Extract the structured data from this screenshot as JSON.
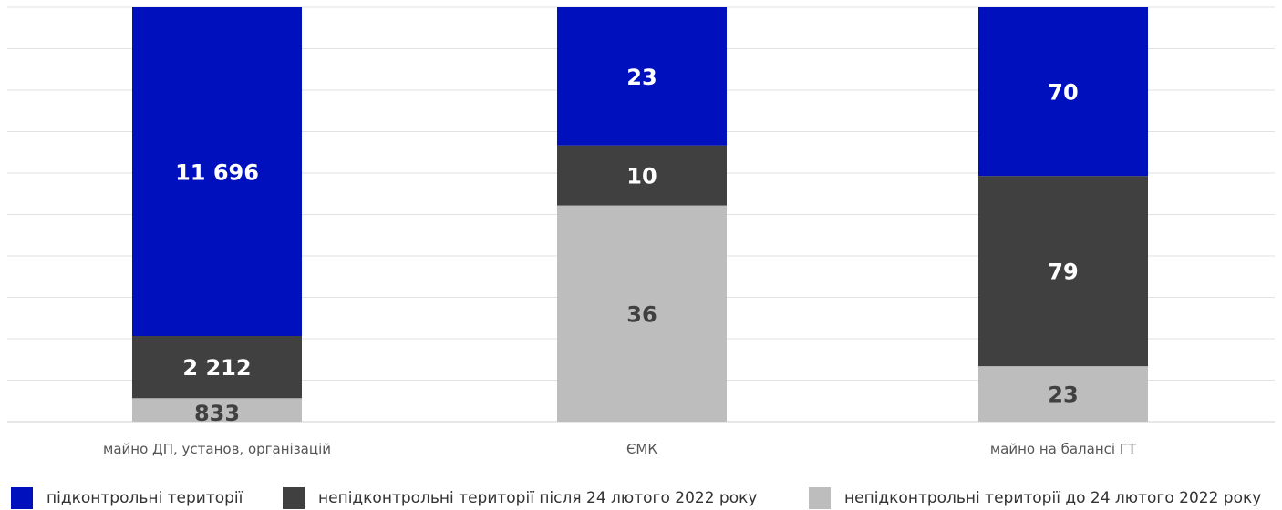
{
  "chart_data": {
    "type": "bar",
    "stacked": true,
    "normalized": true,
    "categories": [
      "майно ДП, установ, організацій",
      "ЄМК",
      "майно на балансі ГТ"
    ],
    "series": [
      {
        "name": "непідконтрольні території до 24 лютого 2022 року",
        "values": [
          833,
          36,
          23
        ],
        "labels": [
          "833",
          "36",
          "23"
        ],
        "color": "#bdbdbd",
        "label_color": "#404040"
      },
      {
        "name": "непідконтрольні території після 24 лютого 2022 року",
        "values": [
          2212,
          10,
          79
        ],
        "labels": [
          "2 212",
          "10",
          "79"
        ],
        "color": "#404040",
        "label_color": "#ffffff"
      },
      {
        "name": "підконтрольні території",
        "values": [
          11696,
          23,
          70
        ],
        "labels": [
          "11 696",
          "23",
          "70"
        ],
        "color": "#0010bd",
        "label_color": "#ffffff"
      }
    ],
    "ylim": [
      0,
      1
    ],
    "grid": true,
    "legend_position": "bottom",
    "legend_order": [
      2,
      1,
      0
    ]
  }
}
